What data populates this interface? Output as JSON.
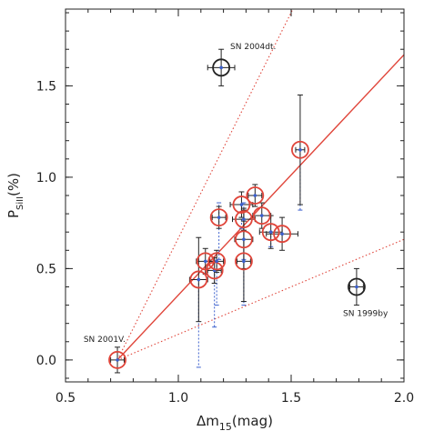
{
  "chart_data": {
    "type": "scatter",
    "title": "",
    "xlabel": "Δm",
    "xlabel_sub": "15",
    "xlabel_unit": "(mag)",
    "ylabel": "P",
    "ylabel_sub": "SiII",
    "ylabel_unit": "(%)",
    "xlim": [
      0.5,
      2.0
    ],
    "ylim": [
      -0.12,
      1.92
    ],
    "xticks": [
      0.5,
      1.0,
      1.5,
      2.0
    ],
    "xtick_labels": [
      "0.5",
      "1.0",
      "1.5",
      "2.0"
    ],
    "yticks": [
      0.0,
      0.5,
      1.0,
      1.5
    ],
    "ytick_labels": [
      "0.0",
      "0.5",
      "1.0",
      "1.5"
    ],
    "grid": false,
    "colors": {
      "circle_red": "#e0453a",
      "circle_black": "#222222",
      "fit": "#e0453a",
      "dotted_error": "#3a5fcd",
      "point": "#3a5fcd",
      "errorbar": "#222222"
    },
    "fit_lines": [
      {
        "style": "solid",
        "x": [
          0.73,
          2.0
        ],
        "y": [
          0.0,
          1.67
        ]
      },
      {
        "style": "dotted",
        "x": [
          0.73,
          1.54
        ],
        "y": [
          0.0,
          2.0
        ]
      },
      {
        "style": "dotted",
        "x": [
          0.73,
          2.0
        ],
        "y": [
          0.0,
          0.66
        ]
      }
    ],
    "points": [
      {
        "x": 0.73,
        "y": 0.0,
        "xerr": 0.03,
        "yerr": 0.07,
        "yerr2_lo": null,
        "yerr2_hi": null,
        "circle": "red"
      },
      {
        "x": 1.09,
        "y": 0.44,
        "xerr": 0.04,
        "yerr": 0.23,
        "yerr2_lo": -0.04,
        "yerr2_hi": null,
        "circle": "red"
      },
      {
        "x": 1.12,
        "y": 0.54,
        "xerr": 0.04,
        "yerr": 0.07,
        "yerr2_lo": null,
        "yerr2_hi": null,
        "circle": "red"
      },
      {
        "x": 1.16,
        "y": 0.49,
        "xerr": 0.03,
        "yerr": 0.07,
        "yerr2_lo": 0.18,
        "yerr2_hi": null,
        "circle": "red"
      },
      {
        "x": 1.17,
        "y": 0.54,
        "xerr": 0.03,
        "yerr": 0.06,
        "yerr2_lo": 0.3,
        "yerr2_hi": null,
        "circle": "red"
      },
      {
        "x": 1.18,
        "y": 0.78,
        "xerr": 0.03,
        "yerr": 0.06,
        "yerr2_lo": 0.55,
        "yerr2_hi": 0.86,
        "circle": "red"
      },
      {
        "x": 1.28,
        "y": 0.85,
        "xerr": 0.05,
        "yerr": 0.07,
        "yerr2_lo": 0.72,
        "yerr2_hi": null,
        "circle": "red"
      },
      {
        "x": 1.29,
        "y": 0.77,
        "xerr": 0.05,
        "yerr": 0.06,
        "yerr2_lo": 0.55,
        "yerr2_hi": 0.86,
        "circle": "red"
      },
      {
        "x": 1.29,
        "y": 0.66,
        "xerr": 0.04,
        "yerr": 0.16,
        "yerr2_lo": 0.32,
        "yerr2_hi": null,
        "circle": "red"
      },
      {
        "x": 1.29,
        "y": 0.54,
        "xerr": 0.03,
        "yerr": 0.22,
        "yerr2_lo": 0.3,
        "yerr2_hi": null,
        "circle": "red"
      },
      {
        "x": 1.34,
        "y": 0.9,
        "xerr": 0.03,
        "yerr": 0.06,
        "yerr2_lo": null,
        "yerr2_hi": null,
        "circle": "red"
      },
      {
        "x": 1.37,
        "y": 0.79,
        "xerr": 0.04,
        "yerr": 0.07,
        "yerr2_lo": null,
        "yerr2_hi": null,
        "circle": "red"
      },
      {
        "x": 1.41,
        "y": 0.7,
        "xerr": 0.05,
        "yerr": 0.09,
        "yerr2_lo": 0.62,
        "yerr2_hi": null,
        "circle": "red"
      },
      {
        "x": 1.46,
        "y": 0.69,
        "xerr": 0.07,
        "yerr": 0.09,
        "yerr2_lo": null,
        "yerr2_hi": null,
        "circle": "red"
      },
      {
        "x": 1.54,
        "y": 1.15,
        "xerr": 0.02,
        "yerr": 0.3,
        "yerr2_lo": 0.82,
        "yerr2_hi": null,
        "circle": "red"
      },
      {
        "x": 1.19,
        "y": 1.6,
        "xerr": 0.06,
        "yerr": 0.1,
        "yerr2_lo": null,
        "yerr2_hi": null,
        "circle": "black"
      },
      {
        "x": 1.79,
        "y": 0.4,
        "xerr": 0.03,
        "yerr": 0.1,
        "yerr2_lo": null,
        "yerr2_hi": null,
        "circle": "black"
      }
    ],
    "annotations": [
      {
        "text": "SN 2004dt.",
        "x": 1.23,
        "y": 1.7
      },
      {
        "text": "SN 2001V.",
        "x": 0.58,
        "y": 0.1
      },
      {
        "text": "SN 1999by",
        "x": 1.73,
        "y": 0.24
      }
    ]
  }
}
